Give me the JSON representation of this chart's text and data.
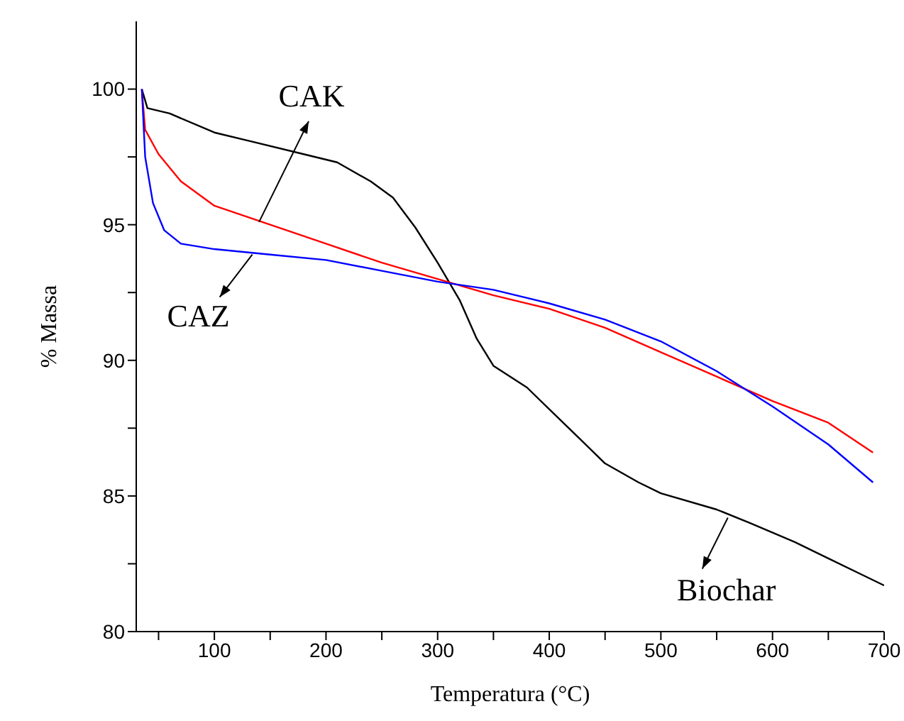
{
  "chart_data": {
    "type": "line",
    "xlabel": "Temperatura (°C)",
    "ylabel": "% Massa",
    "xlim": [
      30,
      700
    ],
    "ylim": [
      80,
      102.5
    ],
    "xticks": [
      {
        "value": 50,
        "label": null
      },
      100,
      {
        "value": 150,
        "label": null
      },
      200,
      {
        "value": 250,
        "label": null
      },
      300,
      {
        "value": 350,
        "label": null
      },
      400,
      {
        "value": 450,
        "label": null
      },
      500,
      {
        "value": 550,
        "label": null
      },
      600,
      {
        "value": 650,
        "label": null
      },
      700
    ],
    "yticks": [
      80,
      {
        "value": 82.5,
        "label": null
      },
      85,
      {
        "value": 87.5,
        "label": null
      },
      90,
      {
        "value": 92.5,
        "label": null
      },
      95,
      {
        "value": 97.5,
        "label": null
      },
      100
    ],
    "grid": false,
    "marker": "none",
    "line_style": "solid",
    "series": [
      {
        "color": "#000000",
        "x": [
          35,
          40,
          60,
          100,
          130,
          180,
          210,
          240,
          260,
          280,
          300,
          320,
          335,
          350,
          380,
          400,
          430,
          450,
          480,
          500,
          550,
          580,
          620,
          650,
          680,
          700
        ],
        "values": [
          100,
          99.3,
          99.1,
          98.4,
          98.1,
          97.6,
          97.3,
          96.6,
          96,
          94.9,
          93.6,
          92.2,
          90.8,
          89.8,
          89,
          88.2,
          87,
          86.2,
          85.5,
          85.1,
          84.5,
          84,
          83.3,
          82.7,
          82.1,
          81.7
        ]
      },
      {
        "color": "#ff0000",
        "x": [
          35,
          38,
          50,
          70,
          100,
          150,
          200,
          250,
          300,
          350,
          400,
          450,
          500,
          550,
          600,
          650,
          690
        ],
        "values": [
          100,
          98.5,
          97.6,
          96.6,
          95.7,
          95,
          94.3,
          93.6,
          93,
          92.4,
          91.9,
          91.2,
          90.3,
          89.4,
          88.5,
          87.7,
          86.6
        ]
      },
      {
        "color": "#0000ff",
        "x": [
          35,
          38,
          45,
          55,
          70,
          100,
          150,
          200,
          250,
          300,
          350,
          400,
          450,
          500,
          550,
          600,
          650,
          690
        ],
        "values": [
          100,
          97.5,
          95.8,
          94.8,
          94.3,
          94.1,
          93.9,
          93.7,
          93.3,
          92.9,
          92.6,
          92.1,
          91.5,
          90.7,
          89.6,
          88.3,
          86.9,
          85.5
        ]
      }
    ],
    "annotations": [
      {
        "text": "CAK",
        "x": 140,
        "y": 95.1
      },
      {
        "text": "CAZ",
        "x": 134,
        "y": 93.9
      },
      {
        "text": "Biochar",
        "x": 560,
        "y": 84.2
      }
    ]
  }
}
